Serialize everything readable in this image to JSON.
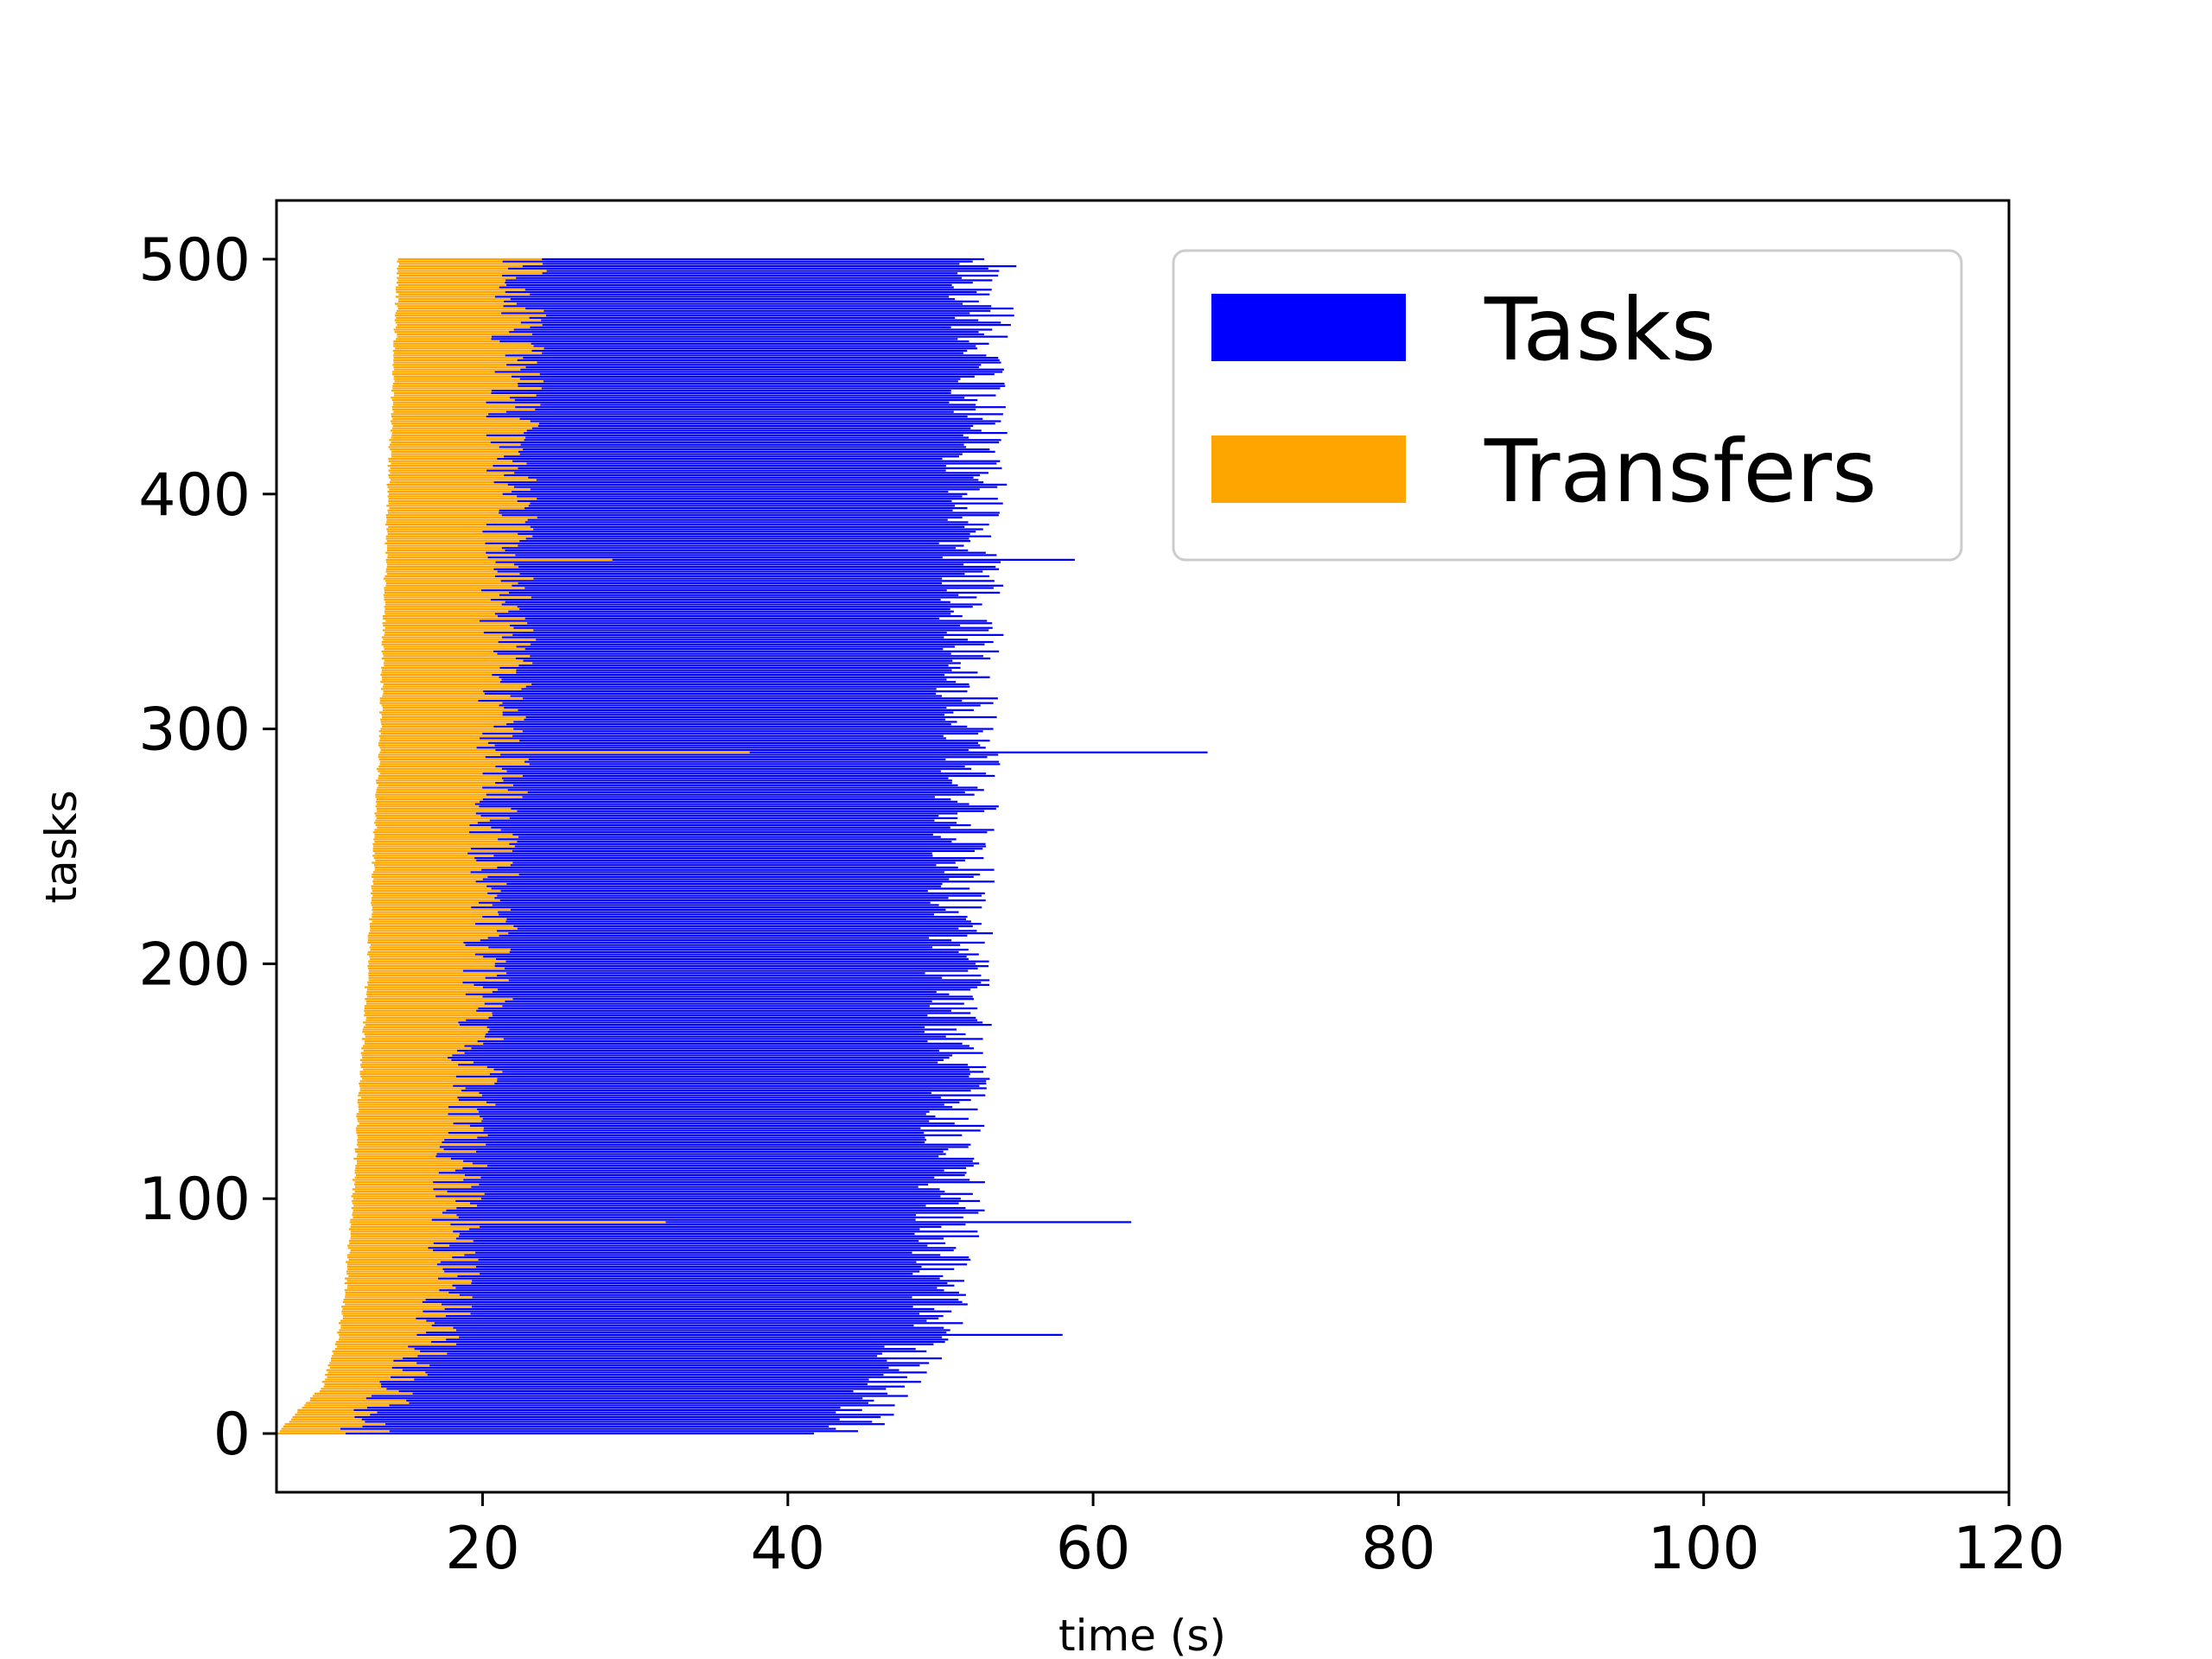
{
  "chart_data": {
    "type": "bar",
    "orientation": "horizontal-gantt",
    "title": "",
    "xlabel": "time (s)",
    "ylabel": "tasks",
    "xlim": [
      6.5,
      120
    ],
    "ylim": [
      -25,
      525
    ],
    "xticks": [
      20,
      40,
      60,
      80,
      100,
      120
    ],
    "yticks": [
      0,
      100,
      200,
      300,
      400,
      500
    ],
    "grid": false,
    "legend": {
      "position": "top-right",
      "entries": [
        {
          "name": "Tasks",
          "color": "#0000ff"
        },
        {
          "name": "Transfers",
          "color": "#ffa500"
        }
      ]
    },
    "num_tasks": 500,
    "series": [
      {
        "name": "Transfers",
        "color": "#ffa500",
        "description": "per-task transfer interval (start, end) in seconds",
        "profile_points": [
          {
            "task": 0,
            "start": 6.5,
            "end": 11.0
          },
          {
            "task": 10,
            "start": 8.0,
            "end": 12.5
          },
          {
            "task": 20,
            "start": 9.5,
            "end": 14.0
          },
          {
            "task": 40,
            "start": 10.5,
            "end": 16.0
          },
          {
            "task": 60,
            "start": 11.0,
            "end": 17.0
          },
          {
            "task": 100,
            "start": 11.5,
            "end": 17.5
          },
          {
            "task": 150,
            "start": 12.0,
            "end": 18.5
          },
          {
            "task": 200,
            "start": 12.5,
            "end": 19.5
          },
          {
            "task": 300,
            "start": 13.3,
            "end": 20.5
          },
          {
            "task": 400,
            "start": 13.8,
            "end": 21.0
          },
          {
            "task": 500,
            "start": 14.5,
            "end": 21.5
          }
        ],
        "outliers": [
          {
            "task": 90,
            "end": 32.0
          },
          {
            "task": 290,
            "end": 37.5
          },
          {
            "task": 372,
            "end": 28.5
          }
        ]
      },
      {
        "name": "Tasks",
        "color": "#0000ff",
        "description": "per-task compute interval starts at transfer end",
        "profile_points": [
          {
            "task": 0,
            "end": 43.0
          },
          {
            "task": 20,
            "end": 46.0
          },
          {
            "task": 50,
            "end": 49.0
          },
          {
            "task": 100,
            "end": 50.0
          },
          {
            "task": 200,
            "end": 50.5
          },
          {
            "task": 300,
            "end": 51.0
          },
          {
            "task": 400,
            "end": 51.5
          },
          {
            "task": 500,
            "end": 52.0
          }
        ],
        "outliers": [
          {
            "task": 42,
            "end": 58.0
          },
          {
            "task": 90,
            "end": 62.5
          },
          {
            "task": 290,
            "end": 67.5
          },
          {
            "task": 372,
            "end": 58.8
          }
        ]
      }
    ]
  }
}
